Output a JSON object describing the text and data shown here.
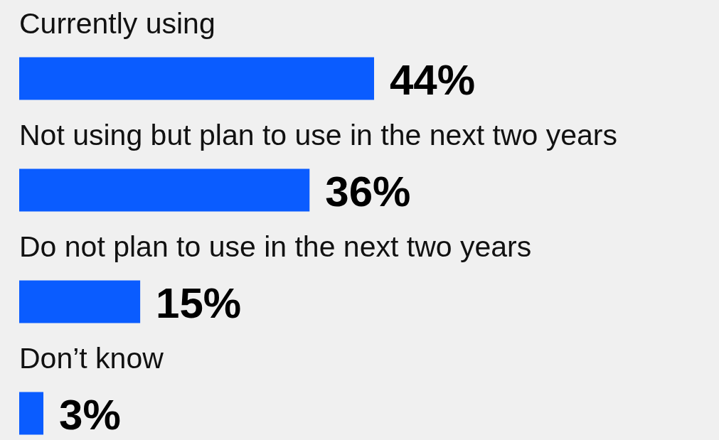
{
  "chart_data": {
    "type": "bar",
    "orientation": "horizontal",
    "categories": [
      "Currently using",
      "Not using but plan to use in the next two years",
      "Do not plan to use in the next two years",
      "Don’t know"
    ],
    "values": [
      44,
      36,
      15,
      3
    ],
    "value_labels": [
      "44%",
      "36%",
      "15%",
      "3%"
    ],
    "color": "#0a5cff"
  }
}
